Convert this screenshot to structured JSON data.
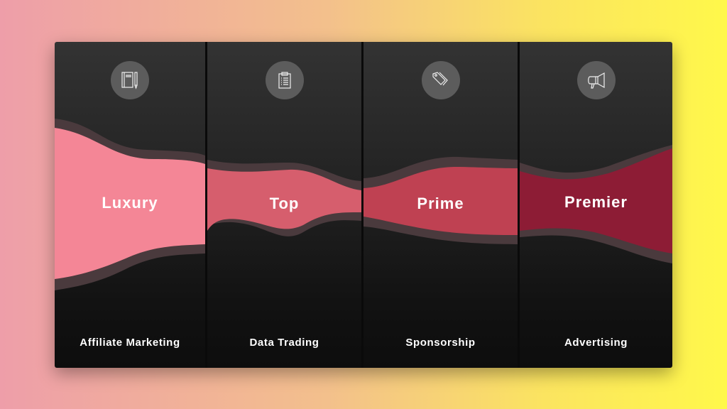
{
  "columns": [
    {
      "tier": "Luxury",
      "category": "Affiliate Marketing",
      "icon": "notebook-pencil-icon",
      "color": "#f48696"
    },
    {
      "tier": "Top",
      "category": "Data Trading",
      "icon": "clipboard-list-icon",
      "color": "#d65e6d"
    },
    {
      "tier": "Prime",
      "category": "Sponsorship",
      "icon": "price-tags-icon",
      "color": "#bf4152"
    },
    {
      "tier": "Premier",
      "category": "Advertising",
      "icon": "megaphone-icon",
      "color": "#8d1c35"
    }
  ]
}
